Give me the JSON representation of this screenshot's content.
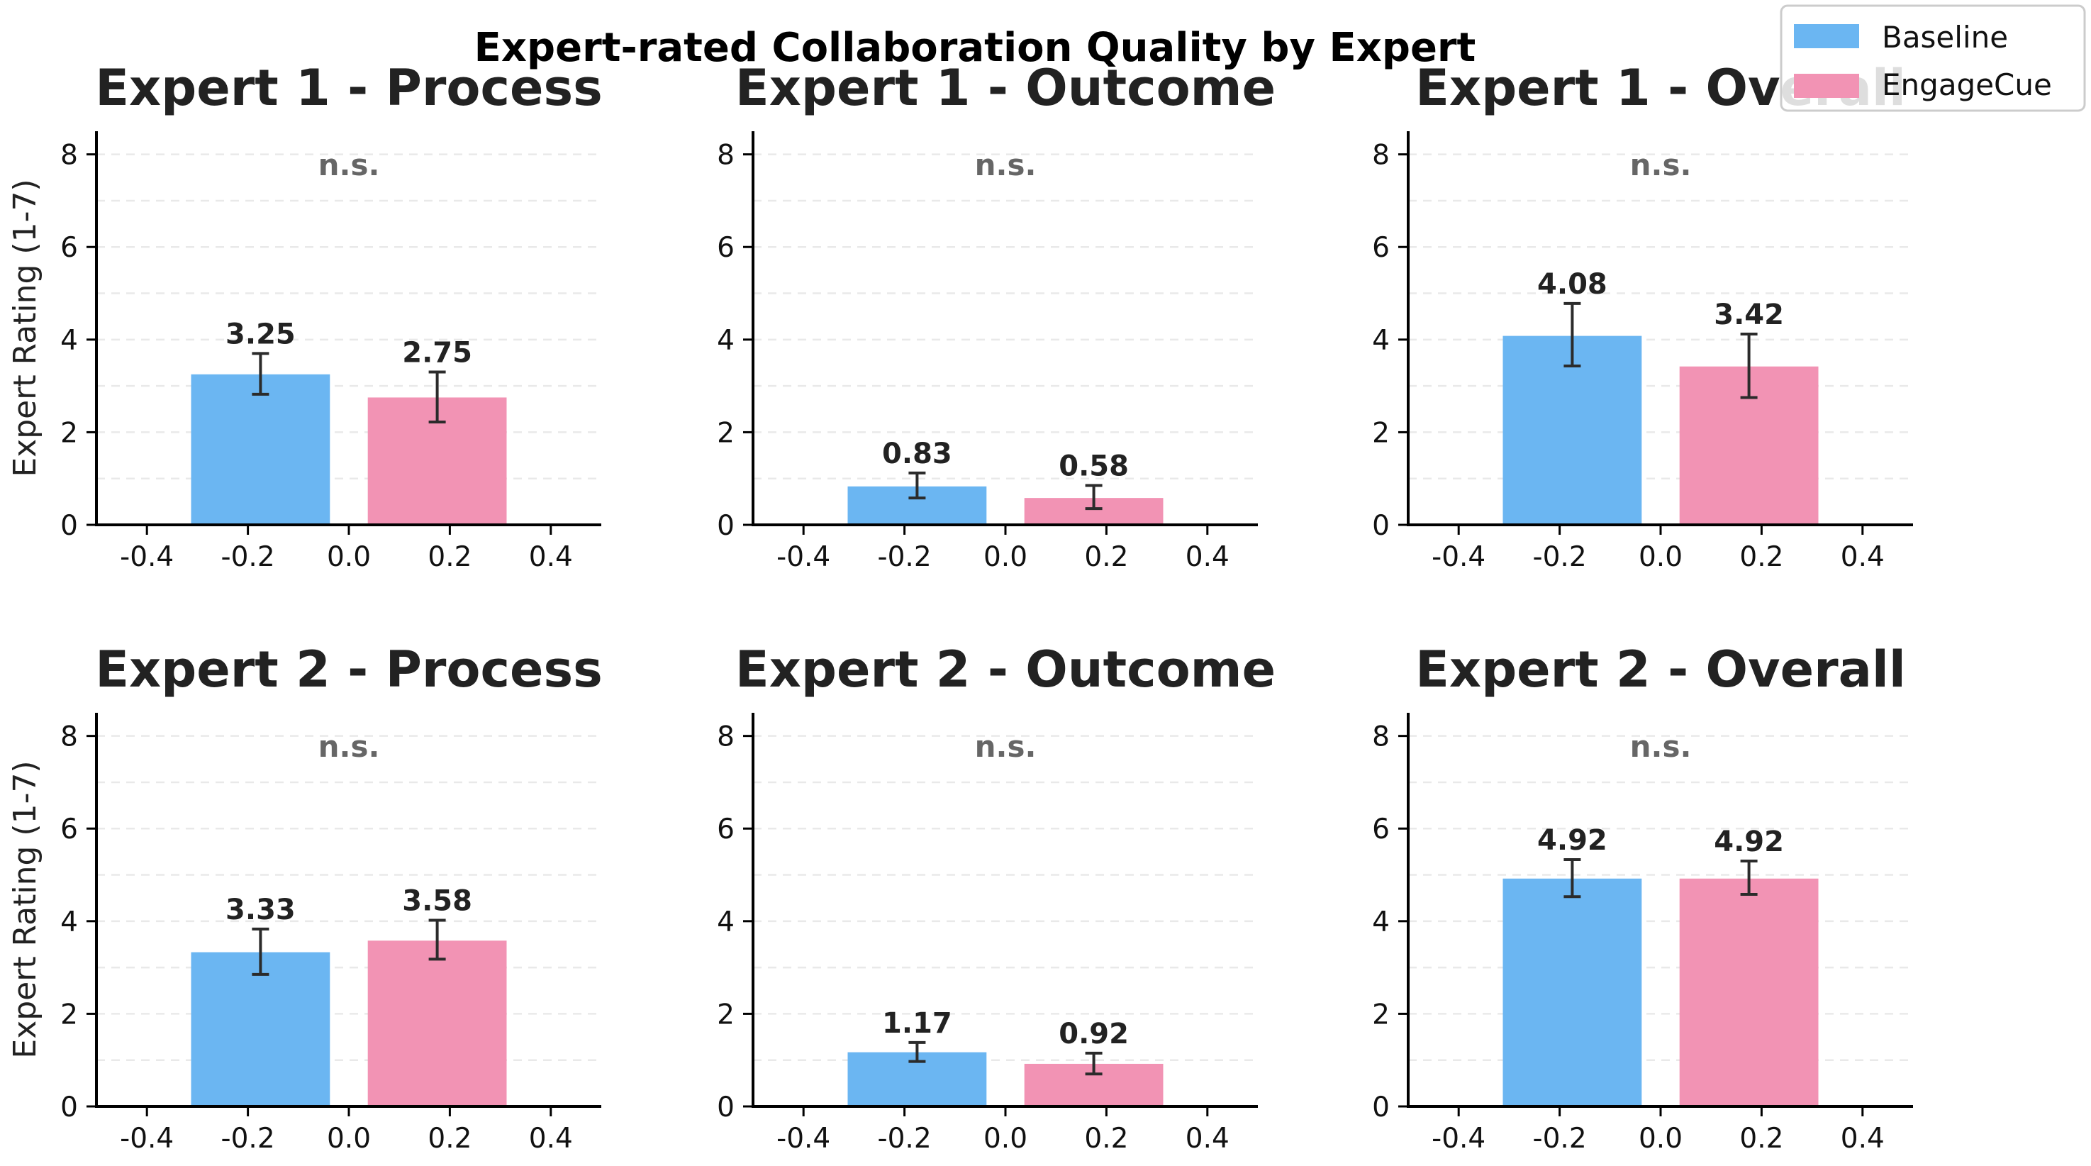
{
  "chart_data": {
    "title": "Expert-rated Collaboration Quality by Expert",
    "legend": {
      "placement": "top-right",
      "entries": [
        {
          "label": "Baseline",
          "color": "#6bb6f2"
        },
        {
          "label": "EngageCue",
          "color": "#f293b4"
        }
      ]
    },
    "panels": [
      {
        "type": "bar",
        "title": "Expert 1 - Process",
        "ylabel": "Expert Rating (1-7)",
        "significance": "n.s.",
        "xlim": [
          -0.5,
          0.5
        ],
        "ylim": [
          0,
          8.5
        ],
        "grid": true,
        "xticks": [
          "-0.4",
          "-0.2",
          "0.0",
          "0.2",
          "0.4"
        ],
        "yticks": [
          "0",
          "2",
          "4",
          "6",
          "8"
        ],
        "bars": [
          {
            "series": "Baseline",
            "x": -0.175,
            "value": 3.25,
            "label": "3.25",
            "err_low": 2.82,
            "err_high": 3.7
          },
          {
            "series": "EngageCue",
            "x": 0.175,
            "value": 2.75,
            "label": "2.75",
            "err_low": 2.22,
            "err_high": 3.3
          }
        ]
      },
      {
        "type": "bar",
        "title": "Expert 1 - Outcome",
        "ylabel": "",
        "significance": "n.s.",
        "xlim": [
          -0.5,
          0.5
        ],
        "ylim": [
          0,
          8.5
        ],
        "grid": true,
        "xticks": [
          "-0.4",
          "-0.2",
          "0.0",
          "0.2",
          "0.4"
        ],
        "yticks": [
          "0",
          "2",
          "4",
          "6",
          "8"
        ],
        "bars": [
          {
            "series": "Baseline",
            "x": -0.175,
            "value": 0.83,
            "label": "0.83",
            "err_low": 0.58,
            "err_high": 1.12
          },
          {
            "series": "EngageCue",
            "x": 0.175,
            "value": 0.58,
            "label": "0.58",
            "err_low": 0.35,
            "err_high": 0.85
          }
        ]
      },
      {
        "type": "bar",
        "title": "Expert 1 - Overall",
        "ylabel": "",
        "significance": "n.s.",
        "xlim": [
          -0.5,
          0.5
        ],
        "ylim": [
          0,
          8.5
        ],
        "grid": true,
        "xticks": [
          "-0.4",
          "-0.2",
          "0.0",
          "0.2",
          "0.4"
        ],
        "yticks": [
          "0",
          "2",
          "4",
          "6",
          "8"
        ],
        "bars": [
          {
            "series": "Baseline",
            "x": -0.175,
            "value": 4.08,
            "label": "4.08",
            "err_low": 3.43,
            "err_high": 4.78
          },
          {
            "series": "EngageCue",
            "x": 0.175,
            "value": 3.42,
            "label": "3.42",
            "err_low": 2.75,
            "err_high": 4.12
          }
        ]
      },
      {
        "type": "bar",
        "title": "Expert 2 - Process",
        "ylabel": "Expert Rating (1-7)",
        "significance": "n.s.",
        "xlim": [
          -0.5,
          0.5
        ],
        "ylim": [
          0,
          8.5
        ],
        "grid": true,
        "xticks": [
          "-0.4",
          "-0.2",
          "0.0",
          "0.2",
          "0.4"
        ],
        "yticks": [
          "0",
          "2",
          "4",
          "6",
          "8"
        ],
        "bars": [
          {
            "series": "Baseline",
            "x": -0.175,
            "value": 3.33,
            "label": "3.33",
            "err_low": 2.85,
            "err_high": 3.83
          },
          {
            "series": "EngageCue",
            "x": 0.175,
            "value": 3.58,
            "label": "3.58",
            "err_low": 3.18,
            "err_high": 4.02
          }
        ]
      },
      {
        "type": "bar",
        "title": "Expert 2 - Outcome",
        "ylabel": "",
        "significance": "n.s.",
        "xlim": [
          -0.5,
          0.5
        ],
        "ylim": [
          0,
          8.5
        ],
        "grid": true,
        "xticks": [
          "-0.4",
          "-0.2",
          "0.0",
          "0.2",
          "0.4"
        ],
        "yticks": [
          "0",
          "2",
          "4",
          "6",
          "8"
        ],
        "bars": [
          {
            "series": "Baseline",
            "x": -0.175,
            "value": 1.17,
            "label": "1.17",
            "err_low": 0.97,
            "err_high": 1.38
          },
          {
            "series": "EngageCue",
            "x": 0.175,
            "value": 0.92,
            "label": "0.92",
            "err_low": 0.7,
            "err_high": 1.15
          }
        ]
      },
      {
        "type": "bar",
        "title": "Expert 2 - Overall",
        "ylabel": "",
        "significance": "n.s.",
        "xlim": [
          -0.5,
          0.5
        ],
        "ylim": [
          0,
          8.5
        ],
        "grid": true,
        "xticks": [
          "-0.4",
          "-0.2",
          "0.0",
          "0.2",
          "0.4"
        ],
        "yticks": [
          "0",
          "2",
          "4",
          "6",
          "8"
        ],
        "bars": [
          {
            "series": "Baseline",
            "x": -0.175,
            "value": 4.92,
            "label": "4.92",
            "err_low": 4.53,
            "err_high": 5.33
          },
          {
            "series": "EngageCue",
            "x": 0.175,
            "value": 4.92,
            "label": "4.92",
            "err_low": 4.58,
            "err_high": 5.3
          }
        ]
      }
    ]
  }
}
